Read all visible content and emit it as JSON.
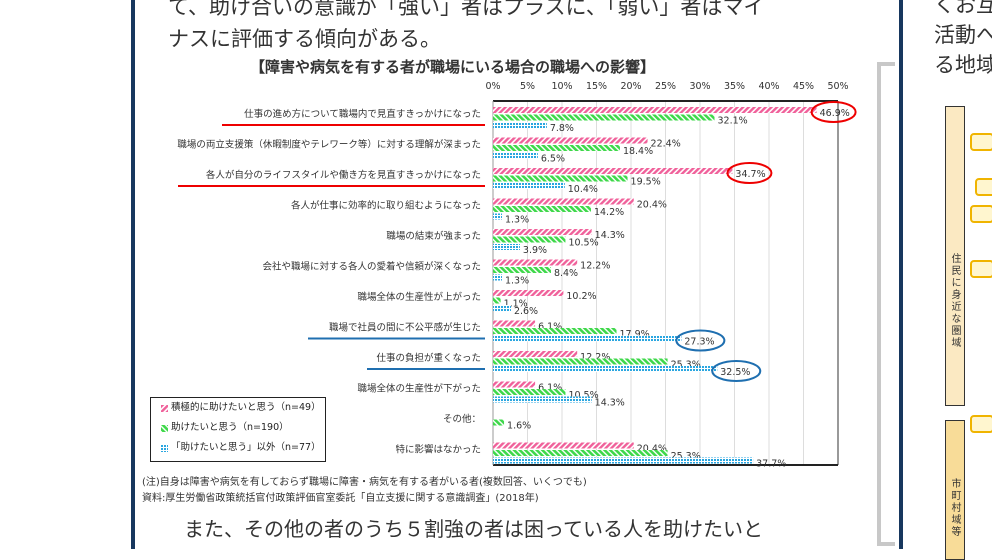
{
  "text": {
    "line1": "て、助け合いの意識が「強い」者はプラスに、「弱い」者はマイ",
    "line2": "ナスに評価する傾向がある。",
    "bottom": "また、その他の者のうち５割強の者は困っている人を助けたいと",
    "right1": "くお互",
    "right2": "活動へ",
    "right3": "る地域",
    "right_region1": "住民に身近な圏域",
    "right_region2": "市町村域等"
  },
  "notes": {
    "note1": "(注)自身は障害や病気を有しておらず職場に障害・病気を有する者がいる者(複数回答、いくつでも)",
    "note2": "資料:厚生労働省政策統括官付政策評価官室委託「自立支援に関する意識調査」(2018年)"
  },
  "chart_data": {
    "type": "bar",
    "orientation": "horizontal",
    "title": "【障害や病気を有する者が職場にいる場合の職場への影響】",
    "xlim": [
      0,
      50
    ],
    "grid": true,
    "xticks": [
      "0%",
      "5%",
      "10%",
      "15%",
      "20%",
      "25%",
      "30%",
      "35%",
      "40%",
      "45%",
      "50%"
    ],
    "categories": [
      "仕事の進め方について職場内で見直すきっかけになった",
      "職場の両立支援策（休暇制度やテレワーク等）に対する理解が深まった",
      "各人が自分のライフスタイルや働き方を見直すきっかけになった",
      "各人が仕事に効率的に取り組むようになった",
      "職場の結束が強まった",
      "会社や職場に対する各人の愛着や信頼が深くなった",
      "職場全体の生産性が上がった",
      "職場で社員の間に不公平感が生じた",
      "仕事の負担が重くなった",
      "職場全体の生産性が下がった",
      "その他：",
      "特に影響はなかった"
    ],
    "series": [
      {
        "name": "積極的に助けたいと思う（n=49）",
        "color": "#f0609a",
        "values": [
          46.9,
          22.4,
          34.7,
          20.4,
          14.3,
          12.2,
          10.2,
          6.1,
          12.2,
          6.1,
          null,
          20.4
        ]
      },
      {
        "name": "助けたいと思う（n=190）",
        "color": "#3ed84a",
        "values": [
          32.1,
          18.4,
          19.5,
          14.2,
          10.5,
          8.4,
          1.1,
          17.9,
          25.3,
          10.5,
          1.6,
          25.3
        ]
      },
      {
        "name": "「助けたいと思う」以外（n=77）",
        "color": "#2aa6e0",
        "values": [
          7.8,
          6.5,
          10.4,
          1.3,
          3.9,
          1.3,
          2.6,
          27.3,
          32.5,
          14.3,
          null,
          37.7
        ]
      }
    ],
    "legend_position": "bottom-left",
    "highlights": {
      "red_underline": [
        0,
        2
      ],
      "blue_underline": [
        7,
        8
      ],
      "red_circle": [
        "46.9%",
        "34.7%"
      ],
      "blue_circle": [
        "27.3%",
        "32.5%"
      ]
    }
  }
}
